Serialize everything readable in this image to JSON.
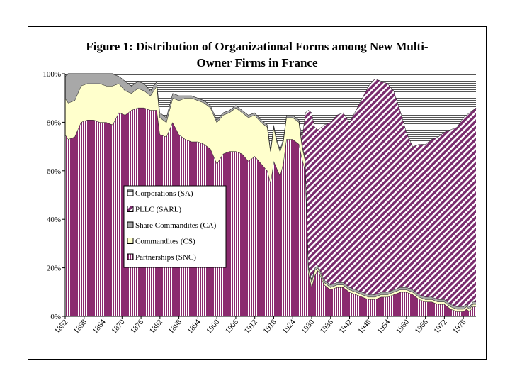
{
  "chart_data": {
    "type": "area",
    "stacked": true,
    "percent": true,
    "title": "Figure 1: Distribution of Organizational Forms among New Multi-",
    "title_line2": "Owner Firms in France",
    "xlabel": "",
    "ylabel": "",
    "xlim": [
      1852,
      1982
    ],
    "ylim": [
      0,
      100
    ],
    "y_ticks": [
      "0%",
      "20%",
      "40%",
      "60%",
      "80%",
      "100%"
    ],
    "x_ticks": [
      "1852",
      "1858",
      "1864",
      "1870",
      "1876",
      "1882",
      "1888",
      "1894",
      "1900",
      "1906",
      "1912",
      "1918",
      "1924",
      "1930",
      "1936",
      "1942",
      "1948",
      "1954",
      "1960",
      "1966",
      "1972",
      "1978"
    ],
    "legend_position": "center-left",
    "legend": [
      {
        "key": "sa",
        "label": "Corporations (SA)"
      },
      {
        "key": "sarl",
        "label": "PLLC (SARL)"
      },
      {
        "key": "ca",
        "label": "Share Commandites (CA)"
      },
      {
        "key": "cs",
        "label": "Commandites (CS)"
      },
      {
        "key": "snc",
        "label": "Partnerships (SNC)"
      }
    ],
    "colors": {
      "sa": "#ffffff",
      "sarl": "#7a2c6e",
      "ca": "#a8a8a8",
      "cs": "#ffffcc",
      "snc": "#8b2a6f"
    },
    "series": [
      {
        "key": "snc",
        "name": "Partnerships (SNC)",
        "cumulative_top": [
          [
            1852,
            75
          ],
          [
            1853,
            73
          ],
          [
            1855,
            74
          ],
          [
            1857,
            80
          ],
          [
            1859,
            81
          ],
          [
            1861,
            81
          ],
          [
            1863,
            80
          ],
          [
            1865,
            80
          ],
          [
            1867,
            79
          ],
          [
            1869,
            84
          ],
          [
            1871,
            83
          ],
          [
            1873,
            85
          ],
          [
            1875,
            86
          ],
          [
            1877,
            86
          ],
          [
            1879,
            85
          ],
          [
            1881,
            85
          ],
          [
            1882,
            75
          ],
          [
            1884,
            74
          ],
          [
            1886,
            80
          ],
          [
            1888,
            75
          ],
          [
            1890,
            73
          ],
          [
            1892,
            72
          ],
          [
            1894,
            72
          ],
          [
            1896,
            71
          ],
          [
            1898,
            69
          ],
          [
            1900,
            63
          ],
          [
            1902,
            67
          ],
          [
            1904,
            68
          ],
          [
            1906,
            68
          ],
          [
            1908,
            67
          ],
          [
            1910,
            64
          ],
          [
            1912,
            66
          ],
          [
            1914,
            63
          ],
          [
            1916,
            60
          ],
          [
            1917,
            55
          ],
          [
            1918,
            64
          ],
          [
            1919,
            61
          ],
          [
            1920,
            58
          ],
          [
            1921,
            63
          ],
          [
            1922,
            73
          ],
          [
            1924,
            73
          ],
          [
            1926,
            71
          ],
          [
            1927,
            65
          ],
          [
            1928,
            60
          ],
          [
            1929,
            18
          ],
          [
            1930,
            12
          ],
          [
            1931,
            17
          ],
          [
            1932,
            19
          ],
          [
            1934,
            13
          ],
          [
            1936,
            11
          ],
          [
            1938,
            12
          ],
          [
            1940,
            12
          ],
          [
            1942,
            10
          ],
          [
            1944,
            9
          ],
          [
            1946,
            8
          ],
          [
            1948,
            7
          ],
          [
            1950,
            7
          ],
          [
            1952,
            8
          ],
          [
            1954,
            8
          ],
          [
            1956,
            9
          ],
          [
            1958,
            10
          ],
          [
            1960,
            10
          ],
          [
            1962,
            9
          ],
          [
            1964,
            7
          ],
          [
            1966,
            6
          ],
          [
            1968,
            6
          ],
          [
            1970,
            5
          ],
          [
            1972,
            5
          ],
          [
            1974,
            3
          ],
          [
            1976,
            2
          ],
          [
            1978,
            2
          ],
          [
            1979,
            3
          ],
          [
            1980,
            2
          ],
          [
            1981,
            4
          ],
          [
            1982,
            4
          ]
        ]
      },
      {
        "key": "cs",
        "name": "Commandites (CS)",
        "cumulative_top": [
          [
            1852,
            90
          ],
          [
            1853,
            88
          ],
          [
            1855,
            89
          ],
          [
            1857,
            95
          ],
          [
            1859,
            96
          ],
          [
            1861,
            96
          ],
          [
            1863,
            96
          ],
          [
            1865,
            95
          ],
          [
            1867,
            95
          ],
          [
            1869,
            96
          ],
          [
            1871,
            93
          ],
          [
            1873,
            92
          ],
          [
            1875,
            94
          ],
          [
            1877,
            93
          ],
          [
            1879,
            91
          ],
          [
            1881,
            95
          ],
          [
            1882,
            82
          ],
          [
            1884,
            80
          ],
          [
            1886,
            90
          ],
          [
            1888,
            89
          ],
          [
            1890,
            90
          ],
          [
            1892,
            90
          ],
          [
            1894,
            89
          ],
          [
            1896,
            88
          ],
          [
            1898,
            86
          ],
          [
            1900,
            80
          ],
          [
            1902,
            83
          ],
          [
            1904,
            84
          ],
          [
            1906,
            86
          ],
          [
            1908,
            84
          ],
          [
            1910,
            82
          ],
          [
            1912,
            83
          ],
          [
            1914,
            80
          ],
          [
            1916,
            78
          ],
          [
            1917,
            68
          ],
          [
            1918,
            78
          ],
          [
            1919,
            72
          ],
          [
            1920,
            68
          ],
          [
            1921,
            72
          ],
          [
            1922,
            82
          ],
          [
            1924,
            82
          ],
          [
            1926,
            80
          ],
          [
            1927,
            70
          ],
          [
            1928,
            64
          ],
          [
            1929,
            20
          ],
          [
            1930,
            14
          ],
          [
            1931,
            19
          ],
          [
            1932,
            20
          ],
          [
            1934,
            14
          ],
          [
            1936,
            12
          ],
          [
            1938,
            13
          ],
          [
            1940,
            13
          ],
          [
            1942,
            11
          ],
          [
            1944,
            10
          ],
          [
            1946,
            9
          ],
          [
            1948,
            8
          ],
          [
            1950,
            8
          ],
          [
            1952,
            9
          ],
          [
            1954,
            9
          ],
          [
            1956,
            10
          ],
          [
            1958,
            11
          ],
          [
            1960,
            11
          ],
          [
            1962,
            10
          ],
          [
            1964,
            8
          ],
          [
            1966,
            7
          ],
          [
            1968,
            7
          ],
          [
            1970,
            6
          ],
          [
            1972,
            6
          ],
          [
            1974,
            4
          ],
          [
            1976,
            3
          ],
          [
            1978,
            3
          ],
          [
            1979,
            4
          ],
          [
            1980,
            3
          ],
          [
            1981,
            5
          ],
          [
            1982,
            5
          ]
        ]
      },
      {
        "key": "ca",
        "name": "Share Commandites (CA)",
        "cumulative_top": [
          [
            1852,
            99
          ],
          [
            1853,
            100
          ],
          [
            1855,
            100
          ],
          [
            1857,
            100
          ],
          [
            1859,
            100
          ],
          [
            1861,
            100
          ],
          [
            1863,
            100
          ],
          [
            1865,
            100
          ],
          [
            1867,
            100
          ],
          [
            1869,
            99
          ],
          [
            1871,
            97
          ],
          [
            1873,
            95
          ],
          [
            1875,
            97
          ],
          [
            1877,
            96
          ],
          [
            1879,
            93
          ],
          [
            1881,
            97
          ],
          [
            1882,
            84
          ],
          [
            1884,
            82
          ],
          [
            1886,
            92
          ],
          [
            1888,
            91
          ],
          [
            1890,
            91
          ],
          [
            1892,
            91
          ],
          [
            1894,
            90
          ],
          [
            1896,
            89
          ],
          [
            1898,
            87
          ],
          [
            1900,
            81
          ],
          [
            1902,
            84
          ],
          [
            1904,
            85
          ],
          [
            1906,
            87
          ],
          [
            1908,
            85
          ],
          [
            1910,
            83
          ],
          [
            1912,
            84
          ],
          [
            1914,
            81
          ],
          [
            1916,
            79
          ],
          [
            1917,
            69
          ],
          [
            1918,
            79
          ],
          [
            1919,
            73
          ],
          [
            1920,
            69
          ],
          [
            1921,
            73
          ],
          [
            1922,
            83
          ],
          [
            1924,
            83
          ],
          [
            1926,
            81
          ],
          [
            1927,
            71
          ],
          [
            1928,
            65
          ],
          [
            1929,
            21
          ],
          [
            1930,
            15
          ],
          [
            1931,
            20
          ],
          [
            1932,
            21
          ],
          [
            1934,
            15
          ],
          [
            1936,
            13
          ],
          [
            1938,
            14
          ],
          [
            1940,
            14
          ],
          [
            1942,
            12
          ],
          [
            1944,
            11
          ],
          [
            1946,
            10
          ],
          [
            1948,
            9
          ],
          [
            1950,
            9
          ],
          [
            1952,
            10
          ],
          [
            1954,
            10
          ],
          [
            1956,
            11
          ],
          [
            1958,
            12
          ],
          [
            1960,
            12
          ],
          [
            1962,
            11
          ],
          [
            1964,
            9
          ],
          [
            1966,
            8
          ],
          [
            1968,
            8
          ],
          [
            1970,
            7
          ],
          [
            1972,
            7
          ],
          [
            1974,
            5
          ],
          [
            1976,
            4
          ],
          [
            1978,
            4
          ],
          [
            1979,
            5
          ],
          [
            1980,
            4
          ],
          [
            1981,
            6
          ],
          [
            1982,
            6
          ]
        ]
      },
      {
        "key": "sarl",
        "name": "PLLC (SARL)",
        "cumulative_top": [
          [
            1852,
            99
          ],
          [
            1853,
            100
          ],
          [
            1855,
            100
          ],
          [
            1857,
            100
          ],
          [
            1859,
            100
          ],
          [
            1861,
            100
          ],
          [
            1863,
            100
          ],
          [
            1865,
            100
          ],
          [
            1867,
            100
          ],
          [
            1869,
            99
          ],
          [
            1871,
            97
          ],
          [
            1873,
            95
          ],
          [
            1875,
            97
          ],
          [
            1877,
            96
          ],
          [
            1879,
            93
          ],
          [
            1881,
            97
          ],
          [
            1882,
            84
          ],
          [
            1884,
            82
          ],
          [
            1886,
            92
          ],
          [
            1888,
            91
          ],
          [
            1890,
            91
          ],
          [
            1892,
            91
          ],
          [
            1894,
            90
          ],
          [
            1896,
            89
          ],
          [
            1898,
            87
          ],
          [
            1900,
            81
          ],
          [
            1902,
            84
          ],
          [
            1904,
            85
          ],
          [
            1906,
            87
          ],
          [
            1908,
            85
          ],
          [
            1910,
            83
          ],
          [
            1912,
            84
          ],
          [
            1914,
            81
          ],
          [
            1916,
            79
          ],
          [
            1917,
            69
          ],
          [
            1918,
            79
          ],
          [
            1919,
            73
          ],
          [
            1920,
            69
          ],
          [
            1921,
            73
          ],
          [
            1922,
            83
          ],
          [
            1924,
            83
          ],
          [
            1926,
            81
          ],
          [
            1927,
            74
          ],
          [
            1928,
            84
          ],
          [
            1929,
            85
          ],
          [
            1930,
            84
          ],
          [
            1931,
            78
          ],
          [
            1932,
            77
          ],
          [
            1934,
            79
          ],
          [
            1936,
            80
          ],
          [
            1938,
            83
          ],
          [
            1940,
            84
          ],
          [
            1942,
            80
          ],
          [
            1944,
            85
          ],
          [
            1946,
            90
          ],
          [
            1948,
            95
          ],
          [
            1950,
            98
          ],
          [
            1952,
            97
          ],
          [
            1954,
            96
          ],
          [
            1956,
            93
          ],
          [
            1958,
            85
          ],
          [
            1960,
            76
          ],
          [
            1962,
            70
          ],
          [
            1964,
            71
          ],
          [
            1966,
            71
          ],
          [
            1968,
            73
          ],
          [
            1970,
            74
          ],
          [
            1972,
            76
          ],
          [
            1974,
            77
          ],
          [
            1976,
            78
          ],
          [
            1978,
            82
          ],
          [
            1980,
            84
          ],
          [
            1982,
            86
          ]
        ]
      },
      {
        "key": "sa",
        "name": "Corporations (SA)",
        "cumulative_top": [
          [
            1852,
            100
          ],
          [
            1982,
            100
          ]
        ]
      }
    ]
  }
}
